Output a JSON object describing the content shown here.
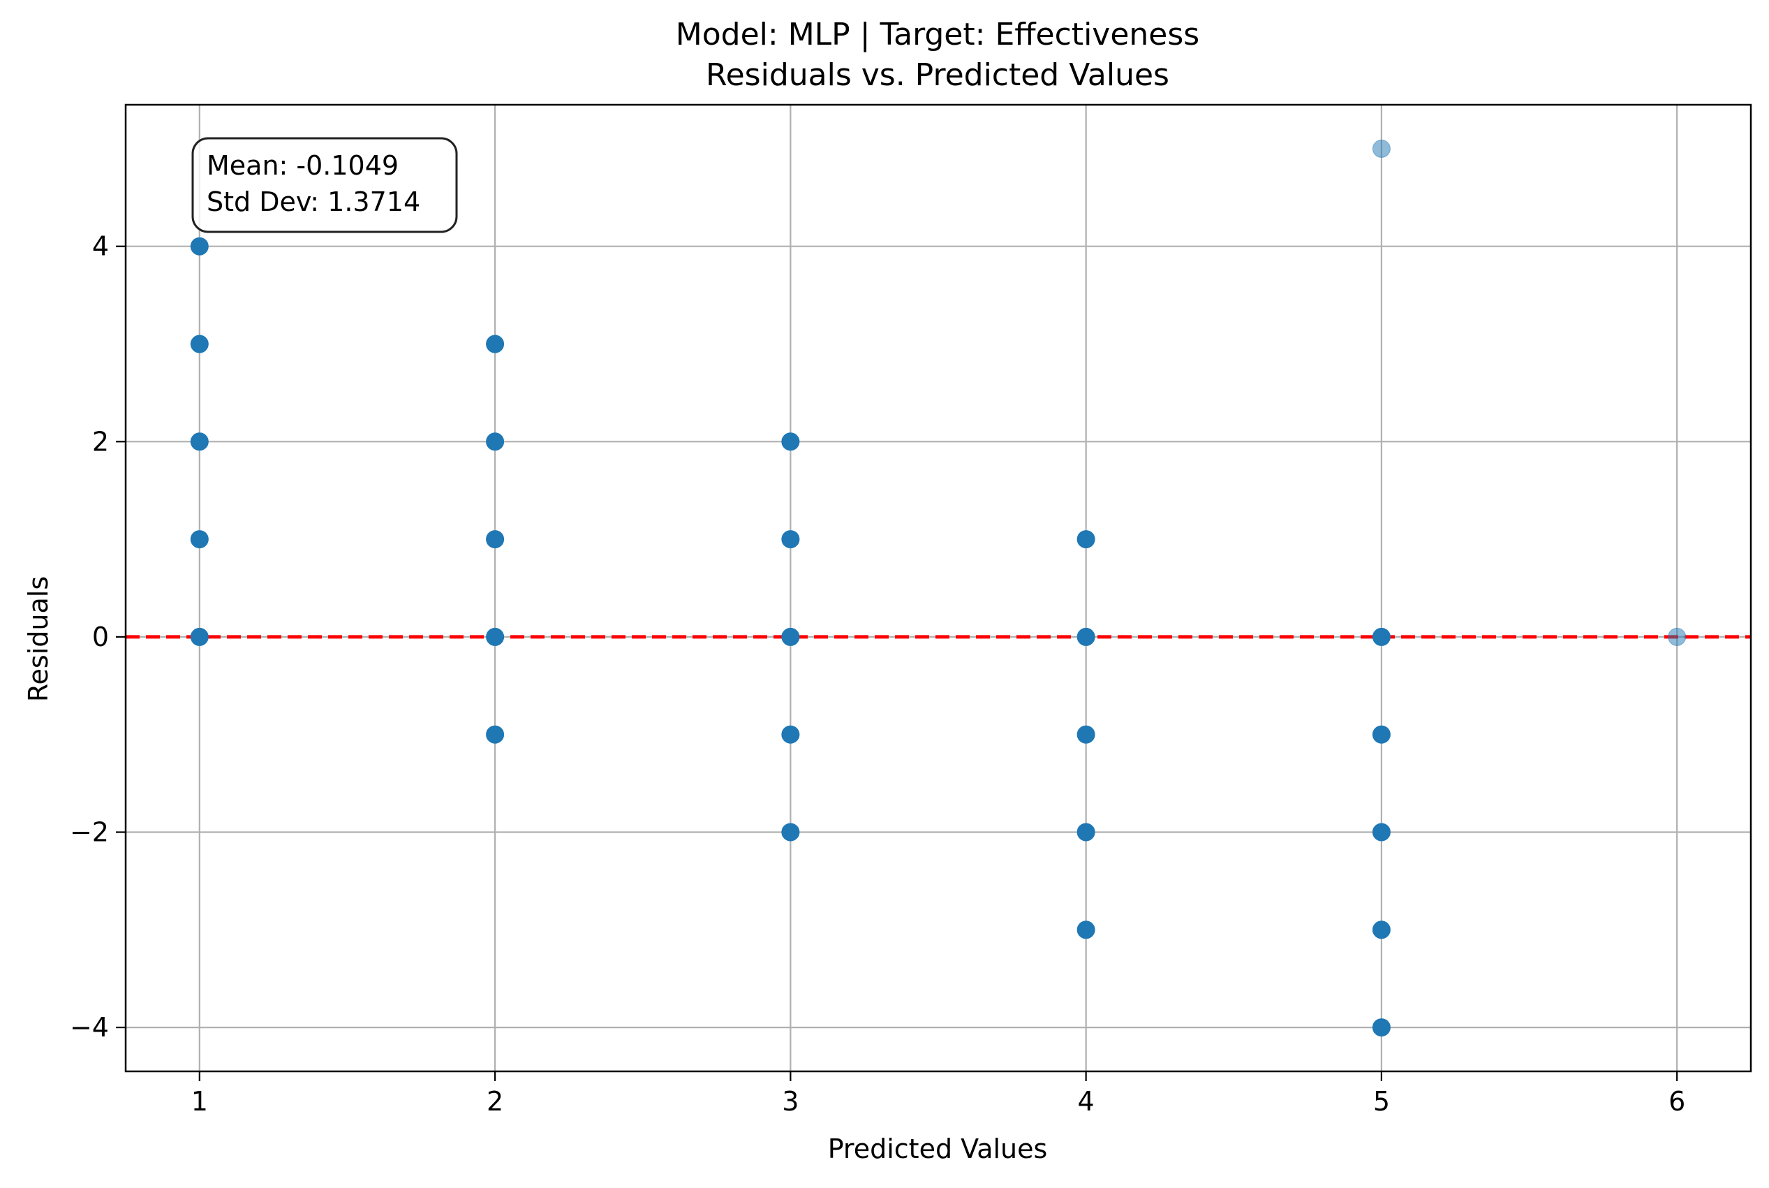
{
  "chart_data": {
    "type": "scatter",
    "title_line1": "Model: MLP | Target: Effectiveness",
    "title_line2": "Residuals vs. Predicted Values",
    "xlabel": "Predicted Values",
    "ylabel": "Residuals",
    "xlim": [
      0.75,
      6.25
    ],
    "ylim": [
      -4.45,
      5.45
    ],
    "xticks": [
      1,
      2,
      3,
      4,
      5,
      6
    ],
    "yticks": [
      -4,
      -2,
      0,
      2,
      4
    ],
    "xtick_labels": [
      "1",
      "2",
      "3",
      "4",
      "5",
      "6"
    ],
    "ytick_labels": [
      "−4",
      "−2",
      "0",
      "2",
      "4"
    ],
    "grid": true,
    "reference_line": {
      "y": 0,
      "style": "dashed",
      "color": "#ff0000"
    },
    "stats_box": {
      "mean_text": "Mean: -0.1049",
      "std_text": "Std Dev: 1.3714",
      "placement": "top-left"
    },
    "points": [
      {
        "x": 1,
        "y": 4,
        "strength": "strong"
      },
      {
        "x": 1,
        "y": 3,
        "strength": "strong"
      },
      {
        "x": 1,
        "y": 2,
        "strength": "strong"
      },
      {
        "x": 1,
        "y": 1,
        "strength": "strong"
      },
      {
        "x": 1,
        "y": 0,
        "strength": "strong"
      },
      {
        "x": 2,
        "y": 3,
        "strength": "strong"
      },
      {
        "x": 2,
        "y": 2,
        "strength": "strong"
      },
      {
        "x": 2,
        "y": 1,
        "strength": "strong"
      },
      {
        "x": 2,
        "y": 0,
        "strength": "strong"
      },
      {
        "x": 2,
        "y": -1,
        "strength": "strong"
      },
      {
        "x": 3,
        "y": 2,
        "strength": "strong"
      },
      {
        "x": 3,
        "y": 1,
        "strength": "strong"
      },
      {
        "x": 3,
        "y": 0,
        "strength": "strong"
      },
      {
        "x": 3,
        "y": -1,
        "strength": "strong"
      },
      {
        "x": 3,
        "y": -2,
        "strength": "strong"
      },
      {
        "x": 4,
        "y": 1,
        "strength": "strong"
      },
      {
        "x": 4,
        "y": 0,
        "strength": "strong"
      },
      {
        "x": 4,
        "y": -1,
        "strength": "strong"
      },
      {
        "x": 4,
        "y": -2,
        "strength": "strong"
      },
      {
        "x": 4,
        "y": -3,
        "strength": "strong"
      },
      {
        "x": 5,
        "y": 5,
        "strength": "faint"
      },
      {
        "x": 5,
        "y": 0,
        "strength": "strong"
      },
      {
        "x": 5,
        "y": -1,
        "strength": "strong"
      },
      {
        "x": 5,
        "y": -2,
        "strength": "strong"
      },
      {
        "x": 5,
        "y": -3,
        "strength": "strong"
      },
      {
        "x": 5,
        "y": -4,
        "strength": "strong"
      },
      {
        "x": 6,
        "y": 0,
        "strength": "faint"
      }
    ],
    "colors": {
      "point": "#1f77b4",
      "grid": "#b0b0b0",
      "axis": "#000000",
      "reference_line": "#ff0000"
    }
  }
}
